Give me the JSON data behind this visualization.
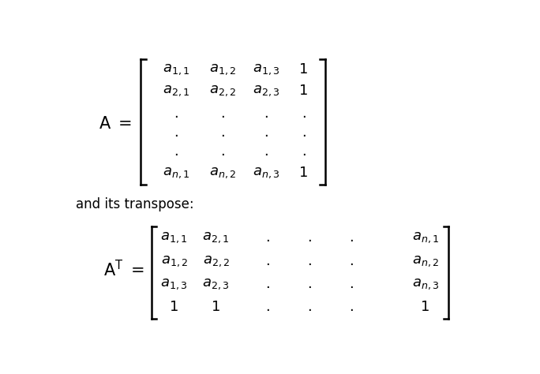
{
  "background_color": "#ffffff",
  "text_color": "#000000",
  "fig_width": 6.84,
  "fig_height": 4.74,
  "and_its_transpose": "and its transpose:",
  "matrix_A": {
    "rows": [
      [
        "$\\mathit{a}_{1,1}$",
        "$\\mathit{a}_{1,2}$",
        "$\\mathit{a}_{1,3}$",
        "1"
      ],
      [
        "$\\mathit{a}_{2,1}$",
        "$\\mathit{a}_{2,2}$",
        "$\\mathit{a}_{2,3}$",
        "1"
      ],
      [
        ".",
        ".",
        ".",
        "."
      ],
      [
        ".",
        ".",
        ".",
        "."
      ],
      [
        ".",
        ".",
        ".",
        "."
      ],
      [
        "$\\mathit{a}_{n,1}$",
        "$\\mathit{a}_{n,2}$",
        "$\\mathit{a}_{n,3}$",
        "1"
      ]
    ]
  },
  "matrix_AT": {
    "rows": [
      [
        "$\\mathit{a}_{1,1}$",
        "$\\mathit{a}_{2,1}$",
        ".",
        ".",
        ".",
        "$\\mathit{a}_{n,1}$"
      ],
      [
        "$\\mathit{a}_{1,2}$",
        "$\\mathit{a}_{2,2}$",
        ".",
        ".",
        ".",
        "$\\mathit{a}_{n,2}$"
      ],
      [
        "$\\mathit{a}_{1,3}$",
        "$\\mathit{a}_{2,3}$",
        ".",
        ".",
        ".",
        "$\\mathit{a}_{n,3}$"
      ],
      [
        "1",
        "1",
        ".",
        ".",
        ".",
        "1"
      ]
    ]
  }
}
